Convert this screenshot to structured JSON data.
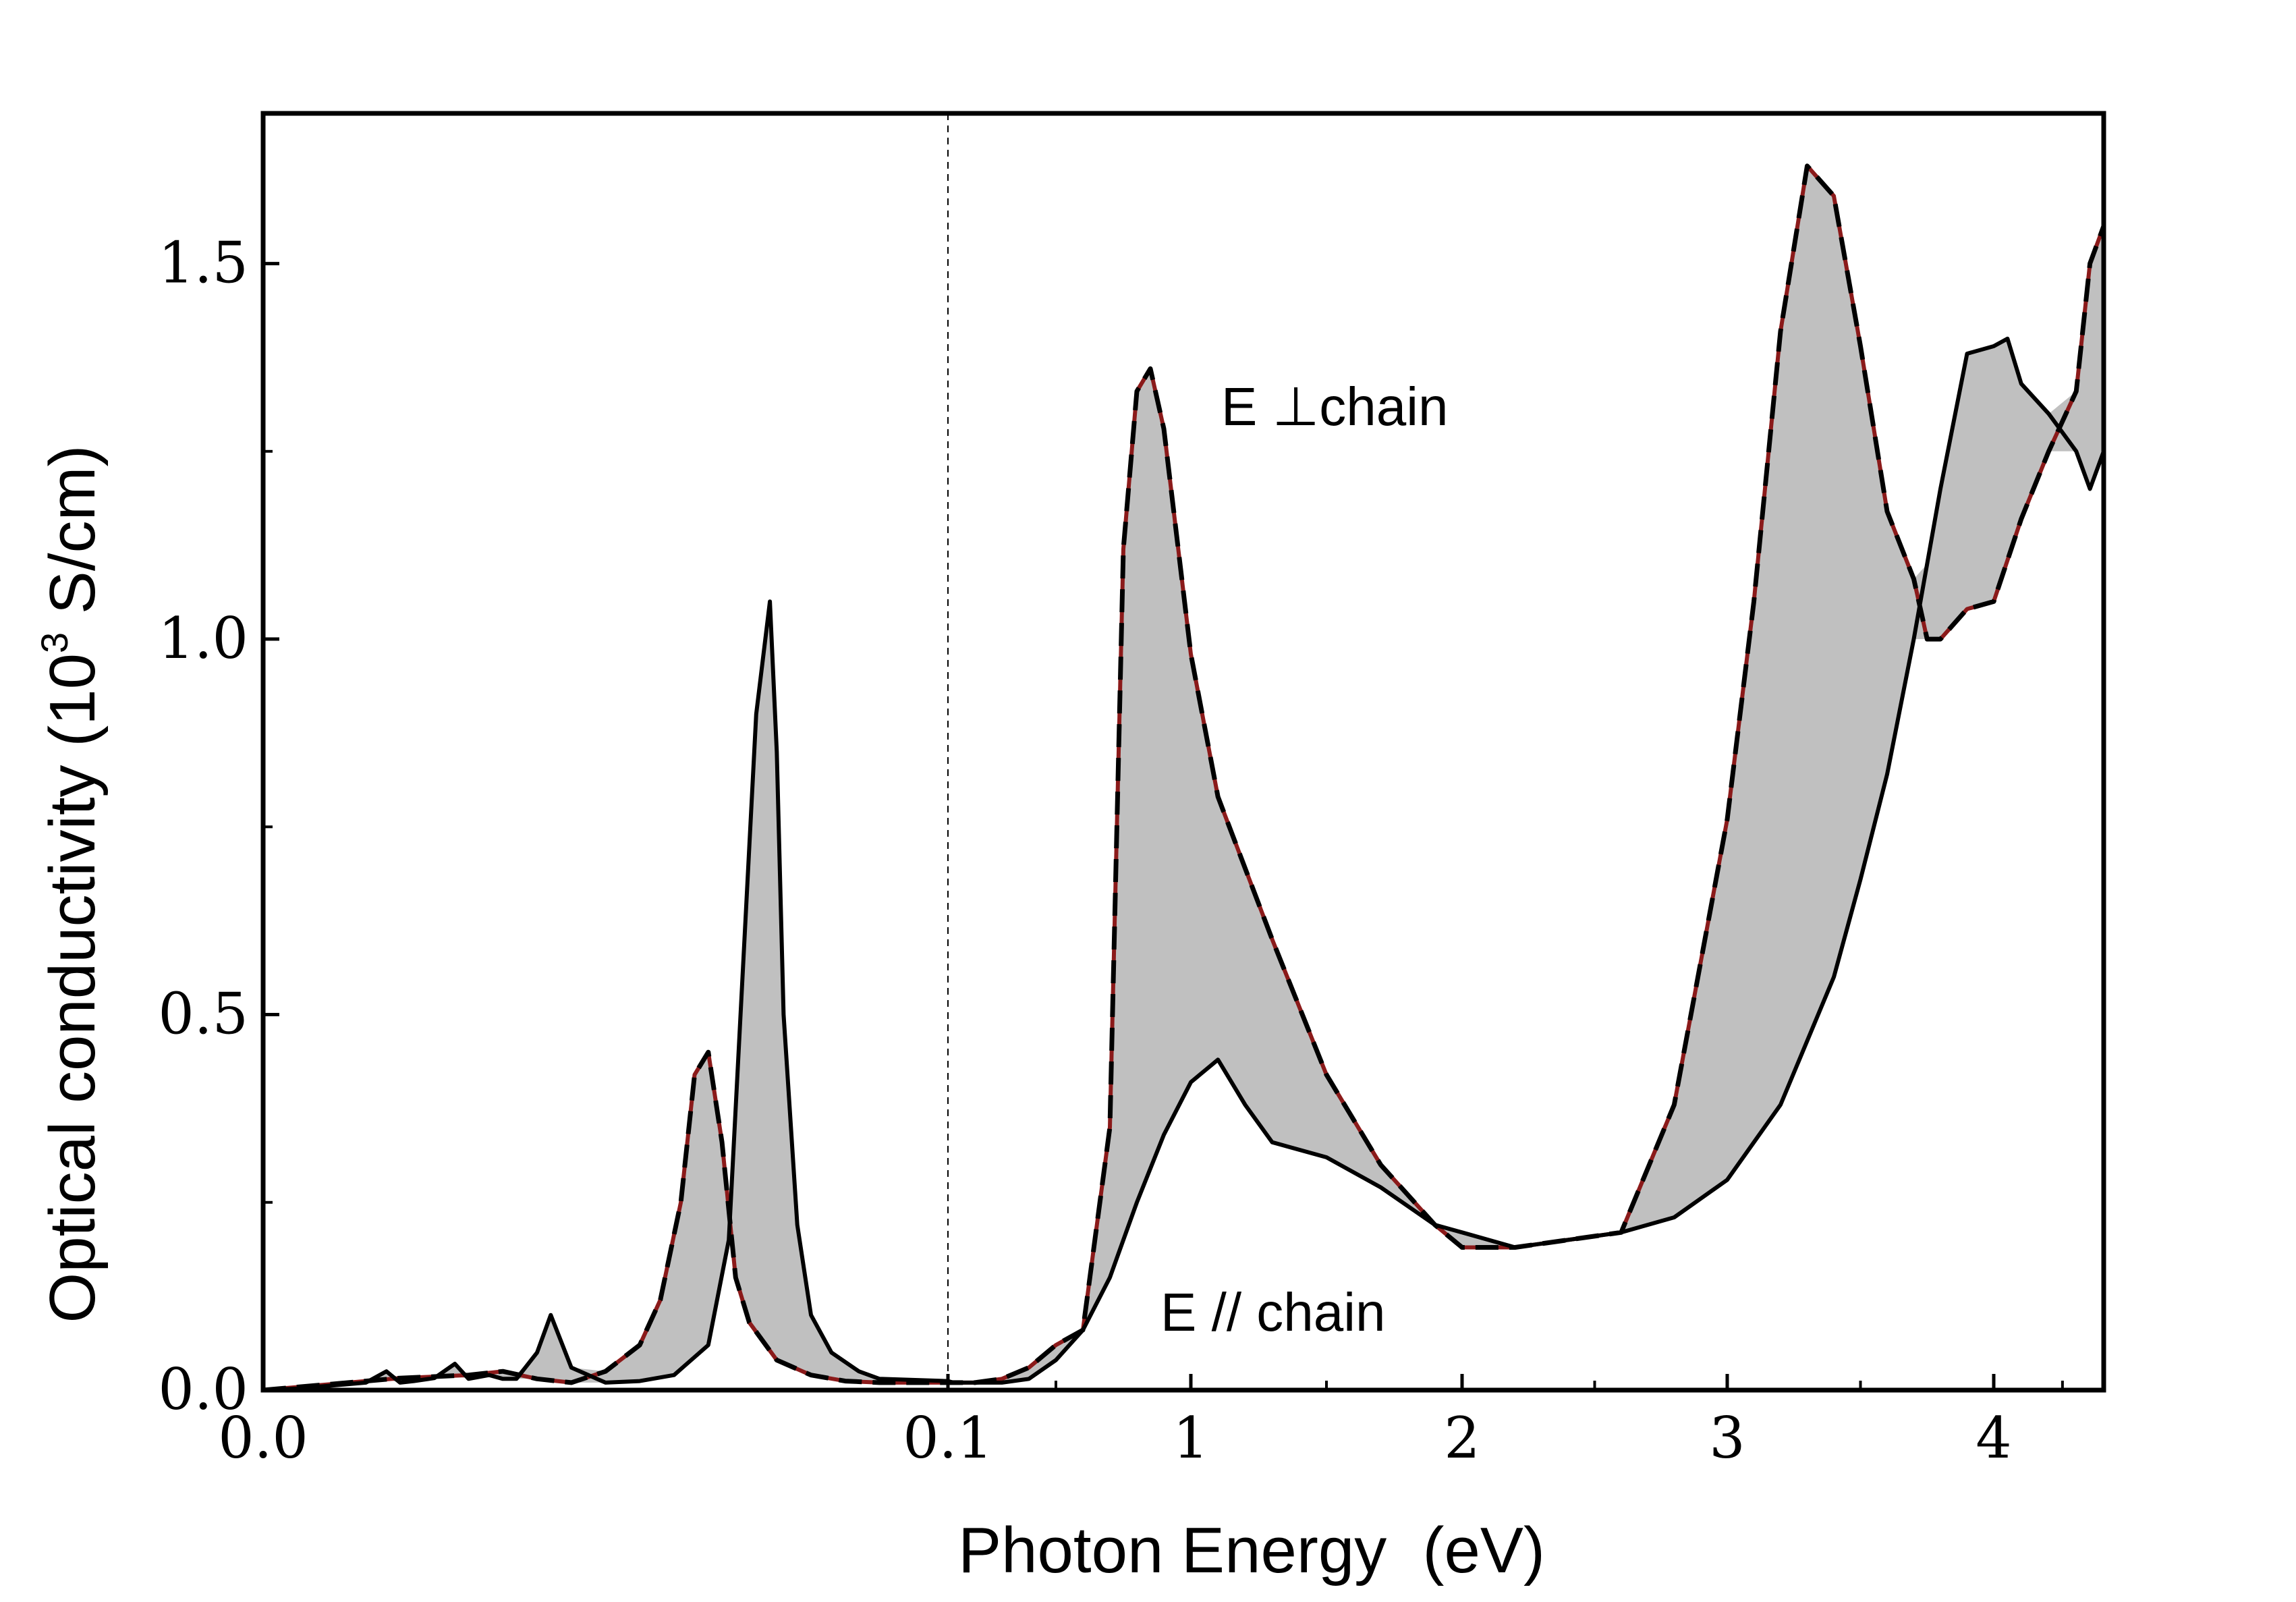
{
  "chart_data": {
    "type": "line",
    "title": "",
    "xlabel": "Photon Energy  (eV)",
    "ylabel": "Optical conductivity (10",
    "ylabel_superscript": "3",
    "ylabel_suffix": " S/cm)",
    "ylim": [
      0,
      1.7
    ],
    "y_ticks": [
      {
        "value": 0.0,
        "label": "0.0"
      },
      {
        "value": 0.5,
        "label": "0.5"
      },
      {
        "value": 1.0,
        "label": "1.0"
      },
      {
        "value": 1.5,
        "label": "1.5"
      }
    ],
    "x_axis_note": "broken axis: linear 0.0-0.1 eV on left panel, linear 0.1-4.4 eV (compressed) on right panel",
    "x_ticks": [
      {
        "value": 0.0,
        "label": "0.0"
      },
      {
        "value": 0.1,
        "label": "0.1"
      },
      {
        "value": 1,
        "label": "1"
      },
      {
        "value": 2,
        "label": "2"
      },
      {
        "value": 3,
        "label": "3"
      },
      {
        "value": 4,
        "label": "4"
      }
    ],
    "annotations": [
      {
        "text": "E ⊥chain",
        "x": 1.3,
        "y": 1.3
      },
      {
        "text": "E // chain",
        "x": 1.3,
        "y": 0.1
      }
    ],
    "series": [
      {
        "name": "E ⊥chain",
        "style": "dashed",
        "x": [
          0.0,
          0.005,
          0.01,
          0.015,
          0.02,
          0.025,
          0.03,
          0.035,
          0.04,
          0.045,
          0.05,
          0.055,
          0.058,
          0.061,
          0.063,
          0.065,
          0.067,
          0.069,
          0.071,
          0.075,
          0.08,
          0.085,
          0.09,
          0.1,
          0.12,
          0.2,
          0.3,
          0.4,
          0.5,
          0.6,
          0.7,
          0.75,
          0.8,
          0.85,
          0.9,
          1.0,
          1.1,
          1.3,
          1.5,
          1.7,
          1.9,
          2.0,
          2.2,
          2.4,
          2.6,
          2.8,
          3.0,
          3.1,
          3.2,
          3.3,
          3.4,
          3.5,
          3.6,
          3.7,
          3.75,
          3.8,
          3.9,
          4.0,
          4.1,
          4.2,
          4.3,
          4.35,
          4.4
        ],
        "y": [
          0.0,
          0.004,
          0.008,
          0.012,
          0.016,
          0.018,
          0.02,
          0.025,
          0.015,
          0.01,
          0.025,
          0.06,
          0.12,
          0.25,
          0.42,
          0.45,
          0.33,
          0.15,
          0.09,
          0.04,
          0.02,
          0.012,
          0.01,
          0.01,
          0.01,
          0.01,
          0.015,
          0.03,
          0.06,
          0.08,
          0.35,
          1.12,
          1.33,
          1.36,
          1.28,
          0.98,
          0.79,
          0.6,
          0.42,
          0.3,
          0.22,
          0.19,
          0.19,
          0.2,
          0.21,
          0.38,
          0.76,
          1.05,
          1.41,
          1.63,
          1.59,
          1.39,
          1.17,
          1.08,
          1.0,
          1.0,
          1.04,
          1.05,
          1.16,
          1.25,
          1.33,
          1.5,
          1.55
        ]
      },
      {
        "name": "E // chain",
        "style": "solid",
        "x": [
          0.0,
          0.005,
          0.01,
          0.015,
          0.018,
          0.02,
          0.022,
          0.025,
          0.028,
          0.03,
          0.033,
          0.035,
          0.037,
          0.04,
          0.042,
          0.045,
          0.05,
          0.055,
          0.06,
          0.065,
          0.068,
          0.07,
          0.072,
          0.074,
          0.075,
          0.076,
          0.078,
          0.08,
          0.083,
          0.087,
          0.09,
          0.1,
          0.12,
          0.2,
          0.3,
          0.4,
          0.5,
          0.6,
          0.7,
          0.8,
          0.9,
          1.0,
          1.1,
          1.2,
          1.3,
          1.5,
          1.7,
          1.9,
          2.0,
          2.2,
          2.4,
          2.6,
          2.8,
          3.0,
          3.2,
          3.4,
          3.5,
          3.6,
          3.7,
          3.8,
          3.9,
          4.0,
          4.05,
          4.1,
          4.2,
          4.3,
          4.35,
          4.4
        ],
        "y": [
          0.0,
          0.002,
          0.006,
          0.01,
          0.025,
          0.01,
          0.012,
          0.016,
          0.035,
          0.015,
          0.02,
          0.015,
          0.015,
          0.05,
          0.1,
          0.03,
          0.01,
          0.012,
          0.02,
          0.06,
          0.2,
          0.55,
          0.9,
          1.05,
          0.85,
          0.5,
          0.22,
          0.1,
          0.05,
          0.025,
          0.015,
          0.012,
          0.01,
          0.01,
          0.01,
          0.015,
          0.04,
          0.08,
          0.15,
          0.25,
          0.34,
          0.41,
          0.44,
          0.38,
          0.33,
          0.31,
          0.27,
          0.22,
          0.21,
          0.19,
          0.2,
          0.21,
          0.23,
          0.28,
          0.38,
          0.55,
          0.68,
          0.82,
          1.0,
          1.2,
          1.38,
          1.39,
          1.4,
          1.34,
          1.3,
          1.25,
          1.2,
          1.25
        ]
      }
    ]
  }
}
